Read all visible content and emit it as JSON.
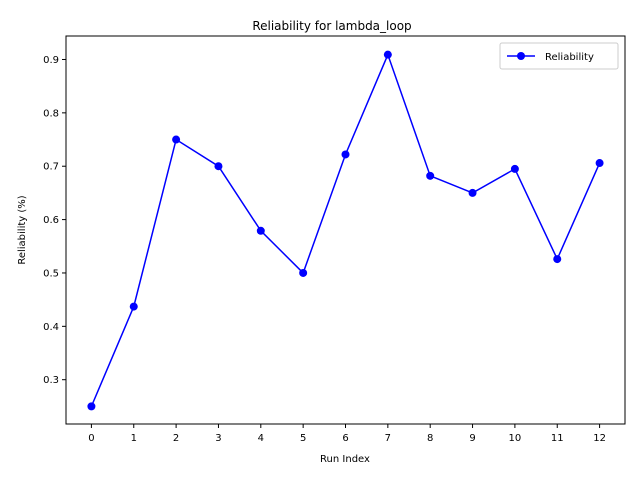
{
  "chart_data": {
    "type": "line",
    "title": "Reliability for lambda_loop",
    "xlabel": "Run Index",
    "ylabel": "Reliability (%)",
    "x": [
      0,
      1,
      2,
      3,
      4,
      5,
      6,
      7,
      8,
      9,
      10,
      11,
      12
    ],
    "xticks": [
      "0",
      "1",
      "2",
      "3",
      "4",
      "5",
      "6",
      "7",
      "8",
      "9",
      "10",
      "11",
      "12"
    ],
    "yticks": [
      "0.3",
      "0.4",
      "0.5",
      "0.6",
      "0.7",
      "0.8",
      "0.9"
    ],
    "xlim": [
      -0.6,
      12.6
    ],
    "ylim": [
      0.217,
      0.944
    ],
    "series": [
      {
        "name": "Reliability",
        "color": "#0000ff",
        "marker": "circle",
        "values": [
          0.25,
          0.437,
          0.75,
          0.7,
          0.579,
          0.5,
          0.722,
          0.909,
          0.682,
          0.65,
          0.695,
          0.526,
          0.706
        ]
      }
    ],
    "legend": {
      "position": "top-right"
    },
    "grid": false
  }
}
